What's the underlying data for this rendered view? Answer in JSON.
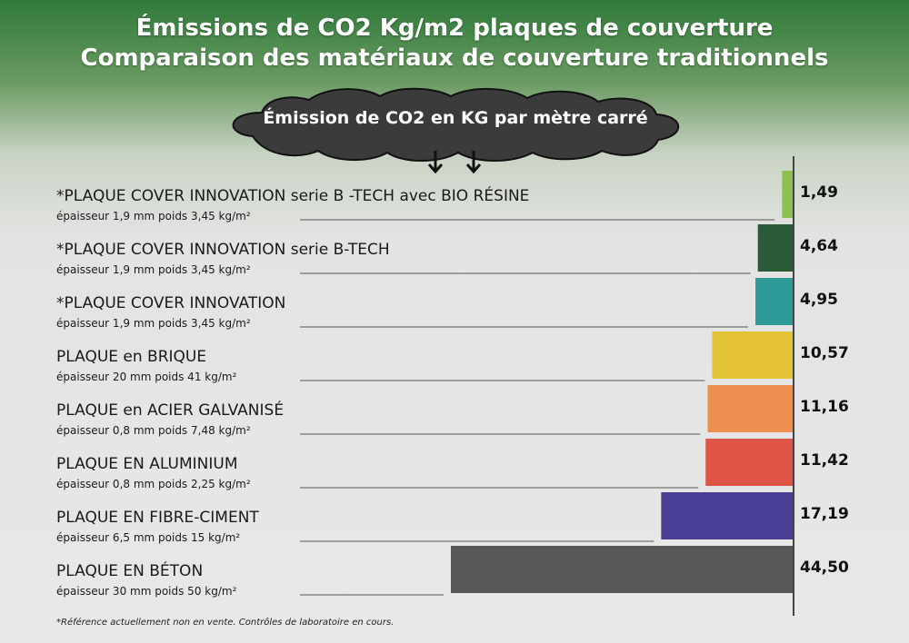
{
  "header": {
    "title_line1": "Émissions de CO2 Kg/m2 plaques de couverture",
    "title_line2": "Comparaison des matériaux de couverture traditionnels"
  },
  "cloud": {
    "label": "Émission de CO2 en KG par mètre carré"
  },
  "footnote": "*Référence actuellement non en vente. Contrôles de laboratoire en cours.",
  "chart_data": {
    "type": "bar",
    "orientation": "horizontal",
    "title": "Émissions de CO2 Kg/m2 plaques de couverture",
    "subtitle": "Comparaison des matériaux de couverture traditionnels",
    "value_axis_label": "Émission de CO2 en KG par mètre carré",
    "xlim": [
      0,
      44.5
    ],
    "categories": [
      "*PLAQUE COVER INNOVATION serie B -TECH avec BIO RÉSINE",
      "*PLAQUE COVER INNOVATION serie B-TECH",
      "*PLAQUE COVER INNOVATION",
      "PLAQUE en BRIQUE",
      "PLAQUE en ACIER GALVANISÉ",
      "PLAQUE EN ALUMINIUM",
      "PLAQUE EN FIBRE-CIMENT",
      "PLAQUE EN BÉTON"
    ],
    "subtitles": [
      "épaisseur 1,9 mm poids 3,45 kg/m²",
      "épaisseur 1,9 mm poids 3,45 kg/m²",
      "épaisseur 1,9 mm poids 3,45 kg/m²",
      "épaisseur 20 mm poids 41 kg/m²",
      "épaisseur 0,8 mm poids 7,48 kg/m²",
      "épaisseur 0,8 mm poids 2,25 kg/m²",
      "épaisseur 6,5 mm poids 15 kg/m²",
      "épaisseur 30 mm poids 50 kg/m²"
    ],
    "values": [
      1.49,
      4.64,
      4.95,
      10.57,
      11.16,
      11.42,
      17.19,
      44.5
    ],
    "value_labels": [
      "1,49",
      "4,64",
      "4,95",
      "10,57",
      "11,16",
      "11,42",
      "17,19",
      "44,50"
    ],
    "colors": [
      "#8dc04f",
      "#2b5a36",
      "#2e9a98",
      "#e3c236",
      "#ee9050",
      "#de5447",
      "#4a3f97",
      "#575757"
    ],
    "bars_grow_from": "right",
    "grid": false,
    "legend": "none"
  }
}
